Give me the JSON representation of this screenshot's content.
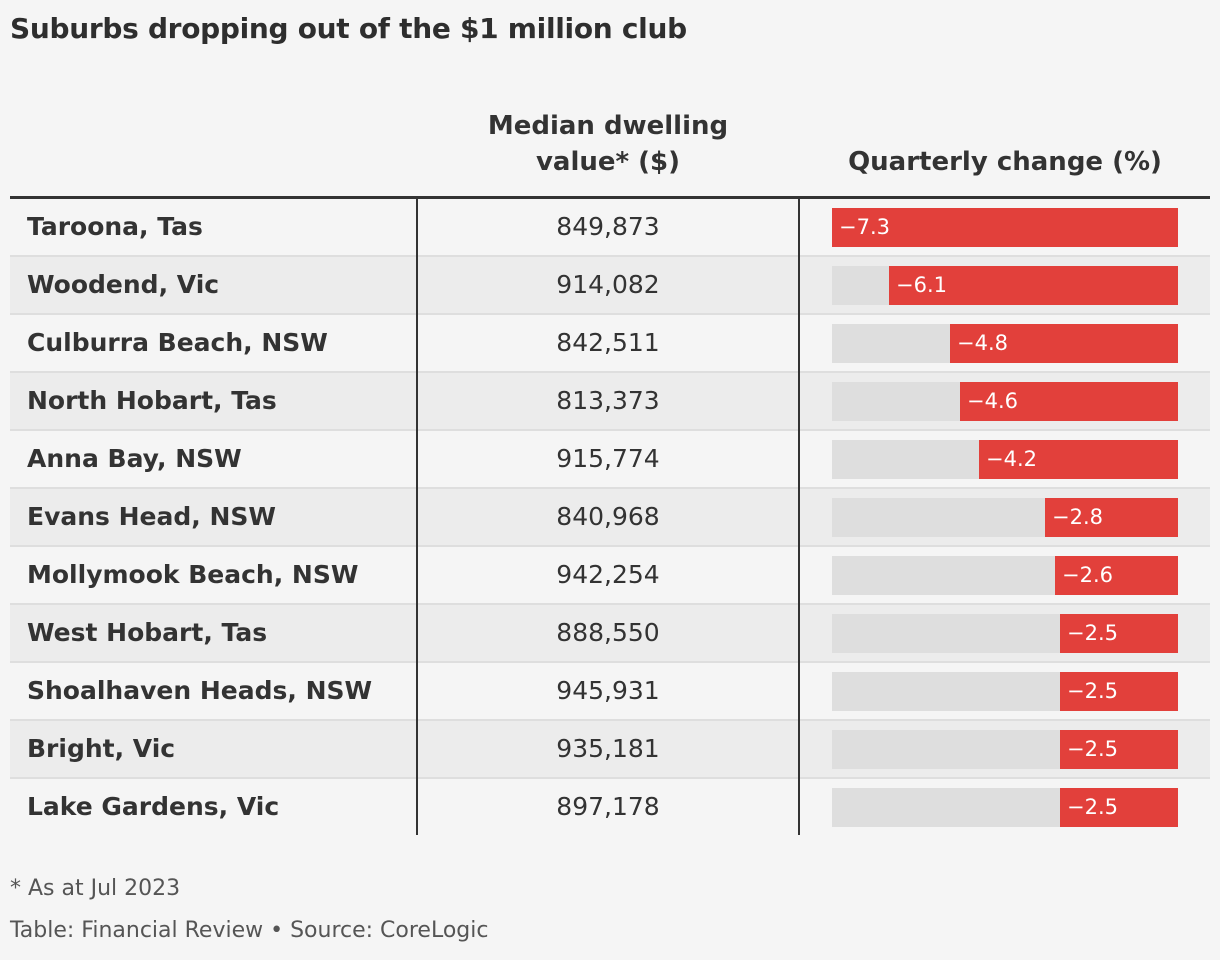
{
  "chart_data": {
    "type": "table",
    "title": "Suburbs dropping out of the $1 million club",
    "columns": {
      "value_line1": "Median dwelling",
      "value_line2": "value* ($)",
      "change": "Quarterly change (%)"
    },
    "rows": [
      {
        "suburb": "Taroona, Tas",
        "value": "849,873",
        "change": -7.3,
        "change_label": "−7.3"
      },
      {
        "suburb": "Woodend, Vic",
        "value": "914,082",
        "change": -6.1,
        "change_label": "−6.1"
      },
      {
        "suburb": "Culburra Beach, NSW",
        "value": "842,511",
        "change": -4.8,
        "change_label": "−4.8"
      },
      {
        "suburb": "North Hobart, Tas",
        "value": "813,373",
        "change": -4.6,
        "change_label": "−4.6"
      },
      {
        "suburb": "Anna Bay, NSW",
        "value": "915,774",
        "change": -4.2,
        "change_label": "−4.2"
      },
      {
        "suburb": "Evans Head, NSW",
        "value": "840,968",
        "change": -2.8,
        "change_label": "−2.8"
      },
      {
        "suburb": "Mollymook Beach, NSW",
        "value": "942,254",
        "change": -2.6,
        "change_label": "−2.6"
      },
      {
        "suburb": "West Hobart, Tas",
        "value": "888,550",
        "change": -2.5,
        "change_label": "−2.5"
      },
      {
        "suburb": "Shoalhaven Heads, NSW",
        "value": "945,931",
        "change": -2.5,
        "change_label": "−2.5"
      },
      {
        "suburb": "Bright, Vic",
        "value": "935,181",
        "change": -2.5,
        "change_label": "−2.5"
      },
      {
        "suburb": "Lake Gardens, Vic",
        "value": "897,178",
        "change": -2.5,
        "change_label": "−2.5"
      }
    ],
    "bar_range": [
      0,
      -7.3
    ],
    "colors": {
      "bar": "#e2403b",
      "track": "#dedede",
      "background": "#f5f5f5"
    }
  },
  "footnote": "* As at Jul 2023",
  "source": "Table: Financial Review • Source: CoreLogic"
}
